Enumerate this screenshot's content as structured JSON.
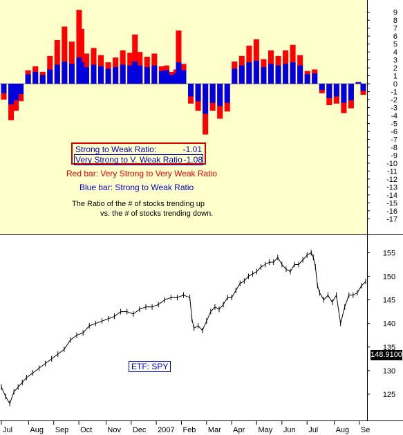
{
  "colors": {
    "top_panel_bg": "#ffffcc",
    "red_bar": "#ff0000",
    "blue_bar": "#0000dd",
    "price_line": "#000000",
    "text_blue": "#0000cc",
    "text_red": "#ee0000",
    "box_border": "#d40000",
    "last_price_bg": "#000000"
  },
  "annotations": {
    "strong_weak_label": "Strong to Weak Ratio:",
    "strong_weak_value": "-1.01",
    "very_strong_label": "Very Strong to V. Weak Ratio",
    "very_strong_value": "-1.08",
    "red_bar_note": "Red bar:  Very Strong to Very Weak Ratio",
    "blue_bar_note": "Blue bar:  Strong to Weak Ratio",
    "description_line1": "The Ratio of the # of stocks trending up",
    "description_line2": "vs. the # of stocks trending down.",
    "etf_label": "ETF: SPY",
    "last_price": "148.9100"
  },
  "chart_data": [
    {
      "type": "bar",
      "title": "",
      "ylim": [
        -17.5,
        9.5
      ],
      "yticks": [
        9,
        8,
        7,
        6,
        5,
        4,
        3,
        2,
        1,
        0,
        -1,
        -2,
        -3,
        -4,
        -5,
        -6,
        -7,
        -8,
        -9,
        -10,
        -11,
        -12,
        -13,
        -14,
        -15,
        -16,
        -17
      ],
      "grid": false,
      "x_range": [
        0,
        300
      ],
      "series": [
        {
          "name": "Very Strong to Very Weak Ratio",
          "color": "#ff0000",
          "x": [
            2,
            8,
            12,
            16,
            22,
            28,
            34,
            40,
            46,
            52,
            58,
            64,
            66,
            70,
            76,
            82,
            88,
            94,
            100,
            106,
            110,
            114,
            120,
            126,
            132,
            136,
            140,
            144,
            146,
            150,
            156,
            162,
            168,
            174,
            180,
            186,
            192,
            198,
            204,
            210,
            216,
            222,
            228,
            234,
            240,
            246,
            252,
            258,
            264,
            270,
            276,
            282,
            288,
            294,
            298
          ],
          "values": [
            -2,
            -4.6,
            -3.4,
            -2.2,
            1.7,
            2.2,
            1.5,
            3.5,
            5.5,
            7.2,
            5.3,
            9.3,
            6.9,
            3.8,
            4.5,
            3.6,
            2.7,
            3.3,
            4.2,
            3.9,
            6.2,
            4.0,
            3.4,
            3.8,
            2.2,
            2.3,
            1.5,
            1.8,
            6.7,
            2.5,
            -2.5,
            -3.4,
            -6.4,
            -3.4,
            -4.4,
            -3.5,
            2.8,
            3.5,
            4.8,
            5.6,
            3.1,
            4.2,
            3.5,
            4.2,
            4.9,
            3.6,
            1.6,
            1.8,
            -1.2,
            -2.7,
            -2.5,
            -3.7,
            -3.1,
            0.2,
            -1.4
          ]
        },
        {
          "name": "Strong to Weak Ratio",
          "color": "#0000dd",
          "x": [
            2,
            8,
            12,
            16,
            22,
            28,
            34,
            40,
            46,
            52,
            58,
            64,
            66,
            70,
            76,
            82,
            88,
            94,
            100,
            106,
            110,
            114,
            120,
            126,
            132,
            136,
            140,
            144,
            146,
            150,
            156,
            162,
            168,
            174,
            180,
            186,
            192,
            198,
            204,
            210,
            216,
            222,
            228,
            234,
            240,
            246,
            252,
            258,
            264,
            270,
            276,
            282,
            288,
            294,
            298
          ],
          "values": [
            -1.2,
            -2.6,
            -2.1,
            -1.3,
            1.2,
            1.5,
            1.1,
            1.8,
            2.4,
            2.8,
            2.5,
            3.3,
            2.7,
            2.1,
            2.4,
            2.2,
            1.9,
            2.1,
            2.4,
            2.3,
            2.8,
            2.3,
            2.1,
            2.3,
            1.6,
            1.7,
            1.1,
            1.3,
            2.7,
            1.7,
            -1.6,
            -2.2,
            -3.8,
            -2.4,
            -2.8,
            -2.4,
            1.9,
            2.3,
            2.7,
            2.9,
            2.1,
            2.5,
            2.3,
            2.5,
            2.7,
            2.3,
            1.2,
            1.3,
            -0.8,
            -1.8,
            -1.6,
            -2.4,
            -2.1,
            0.2,
            -0.9
          ]
        }
      ]
    },
    {
      "type": "line",
      "title": "",
      "ylim": [
        120,
        158
      ],
      "yticks": [
        155,
        150,
        145,
        140,
        135,
        130,
        125
      ],
      "grid": false,
      "x_labels": [
        "Jul",
        "Aug",
        "Sep",
        "Oct",
        "Nov",
        "Dec",
        "2007",
        "Feb",
        "Mar",
        "Apr",
        "May",
        "Jun",
        "Jul",
        "Aug",
        "Se"
      ],
      "x_label_positions": [
        0,
        13,
        25,
        37,
        50,
        62,
        74,
        86,
        98,
        110,
        122,
        134,
        146,
        159,
        171
      ],
      "x_range": [
        0,
        174
      ],
      "series": [
        {
          "name": "SPY",
          "color": "#000000",
          "x": [
            0,
            2,
            4,
            6,
            8,
            10,
            12,
            15,
            18,
            21,
            24,
            27,
            30,
            33,
            36,
            39,
            42,
            45,
            48,
            51,
            54,
            57,
            60,
            63,
            66,
            69,
            72,
            75,
            78,
            81,
            84,
            87,
            90,
            91,
            92,
            94,
            96,
            98,
            100,
            102,
            104,
            106,
            108,
            110,
            112,
            114,
            116,
            118,
            120,
            122,
            124,
            126,
            128,
            130,
            132,
            134,
            136,
            138,
            140,
            142,
            144,
            146,
            148,
            149,
            150,
            151,
            152,
            154,
            156,
            158,
            160,
            162,
            164,
            166,
            168,
            170,
            172,
            174
          ],
          "values": [
            126.5,
            124.5,
            123,
            125.5,
            126.5,
            127.5,
            128.5,
            129.5,
            130.5,
            131.5,
            132.5,
            133.5,
            134.5,
            136.5,
            137.5,
            138,
            139.5,
            140,
            140.5,
            141,
            141.5,
            142.5,
            142.5,
            142,
            143,
            143.5,
            143.5,
            144,
            145,
            145.5,
            145.5,
            146,
            145.5,
            141,
            139,
            139.5,
            138.5,
            140.5,
            142.5,
            143.5,
            143,
            144,
            145.5,
            145.5,
            147,
            148.5,
            149,
            150,
            150.5,
            151,
            152,
            152.5,
            153,
            153,
            154,
            152.5,
            151.5,
            151,
            152.5,
            152.5,
            153.5,
            154.5,
            155,
            154,
            152,
            148,
            146.5,
            145,
            146,
            144.5,
            146,
            140,
            143.5,
            146,
            146,
            146.5,
            148,
            148.9
          ]
        }
      ]
    }
  ]
}
